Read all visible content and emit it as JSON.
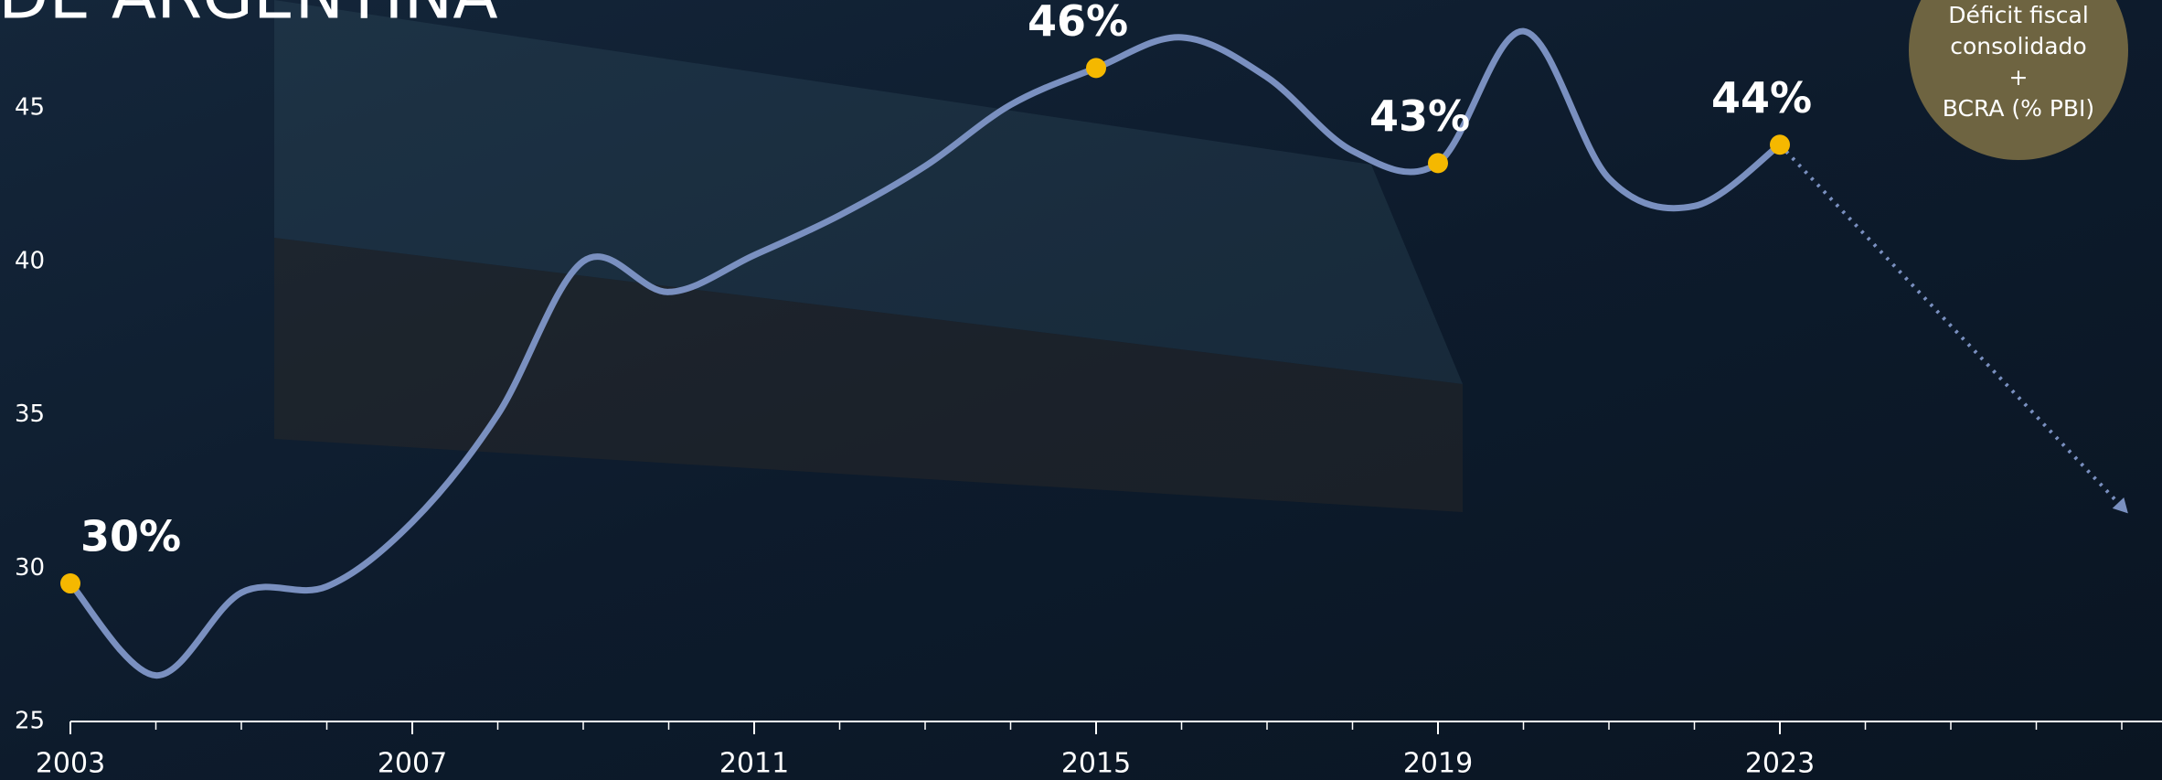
{
  "chart_data": {
    "type": "line",
    "title": "DE ARGENTINA",
    "annotation": [
      "Déficit fiscal",
      "consolidado",
      "+",
      "BCRA (% PBI)"
    ],
    "x": [
      2003,
      2004,
      2005,
      2006,
      2007,
      2008,
      2009,
      2010,
      2011,
      2012,
      2013,
      2014,
      2015,
      2016,
      2017,
      2018,
      2019,
      2020,
      2021,
      2022,
      2023
    ],
    "values": [
      29.5,
      26.5,
      29.2,
      29.4,
      31.5,
      35,
      40,
      39,
      40.2,
      41.5,
      43.1,
      45.1,
      46.3,
      47.3,
      46,
      43.6,
      43.2,
      47.5,
      42.7,
      41.8,
      43.8
    ],
    "value_labels": [
      "30%",
      null,
      null,
      null,
      null,
      null,
      null,
      null,
      null,
      null,
      null,
      null,
      "46%",
      null,
      null,
      null,
      "43%",
      null,
      null,
      null,
      "44%"
    ],
    "color": "#7a90c0",
    "marker_color": "#f5b800",
    "projection": {
      "x": [
        2023,
        2027
      ],
      "values": [
        43.8,
        32
      ]
    },
    "xlim": [
      2003,
      2027
    ],
    "ylim": [
      25,
      47.5
    ],
    "xticks": [
      2003,
      2007,
      2011,
      2015,
      2019,
      2023
    ],
    "xminor_ticks": [
      2004,
      2005,
      2006,
      2008,
      2009,
      2010,
      2012,
      2013,
      2014,
      2016,
      2017,
      2018,
      2020,
      2021,
      2022,
      2024,
      2025,
      2026,
      2027
    ],
    "yticks": [
      25,
      30,
      35,
      40,
      45
    ]
  }
}
